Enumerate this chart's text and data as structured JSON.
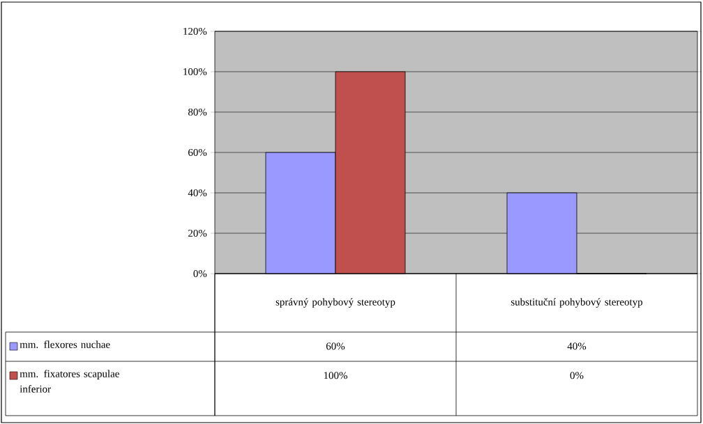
{
  "chart_data": {
    "type": "bar",
    "categories": [
      "správný pohybový stereotyp",
      "substituční pohybový stereotyp"
    ],
    "series": [
      {
        "name": "mm. flexores nuchae",
        "color": "#9999ff",
        "values": [
          60,
          40
        ],
        "value_labels": [
          "60%",
          "40%"
        ]
      },
      {
        "name": "mm. fixatores scapulae inferior",
        "color": "#c0504d",
        "values": [
          100,
          0
        ],
        "value_labels": [
          "100%",
          "0%"
        ]
      }
    ],
    "ylim": [
      0,
      120
    ],
    "yticks": [
      {
        "value": 0,
        "label": "0%"
      },
      {
        "value": 20,
        "label": "20%"
      },
      {
        "value": 40,
        "label": "40%"
      },
      {
        "value": 60,
        "label": "60%"
      },
      {
        "value": 80,
        "label": "80%"
      },
      {
        "value": 100,
        "label": "100%"
      },
      {
        "value": 120,
        "label": "120%"
      }
    ],
    "grid": "y",
    "legend": "bottom left"
  }
}
